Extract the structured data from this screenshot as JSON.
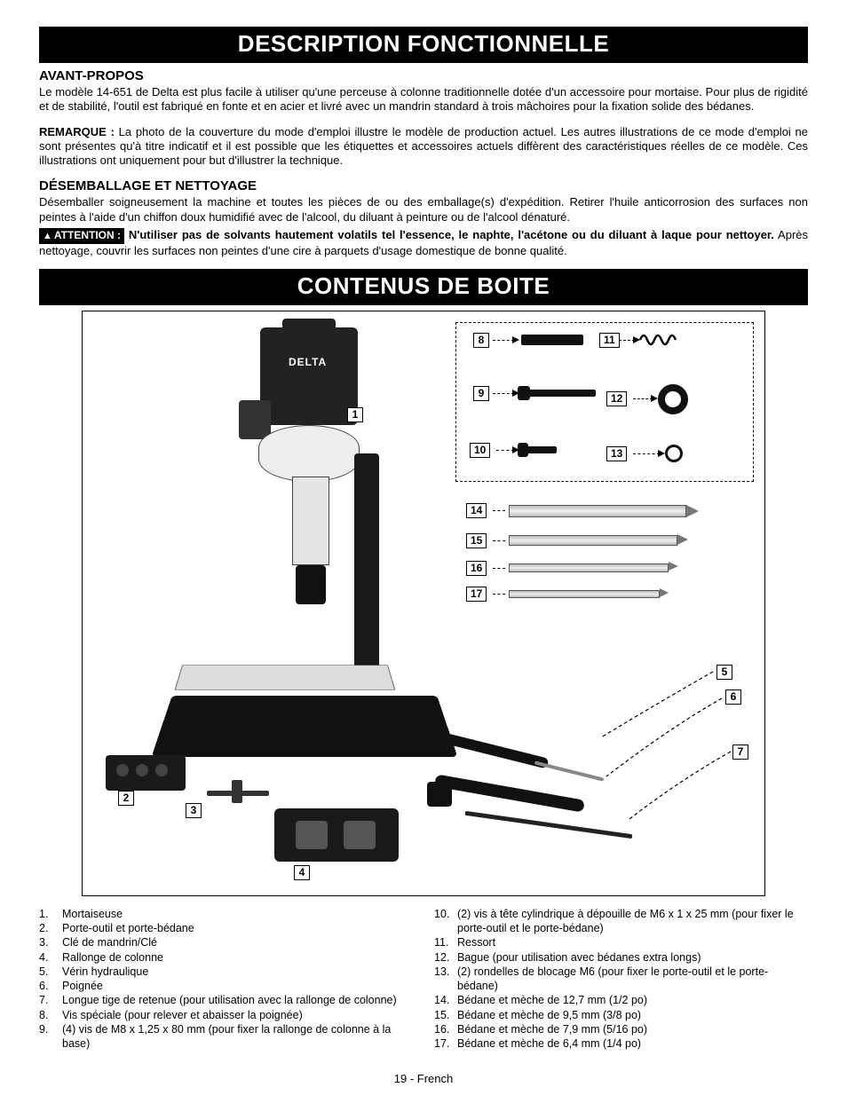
{
  "banner1": "DESCRIPTION FONCTIONNELLE",
  "banner2": "CONTENUS DE BOITE",
  "heading_avant": "AVANT-PROPOS",
  "para_avant": "Le modèle 14-651 de Delta est plus facile à utiliser qu'une perceuse à colonne traditionnelle dotée d'un accessoire pour mortaise. Pour plus de rigidité et de stabilité, l'outil est fabriqué en fonte et en acier et livré avec un mandrin standard à trois mâchoires pour la fixation solide des bédanes.",
  "remarque_label": "REMARQUE :",
  "remarque_text": " La photo de la couverture du mode d'emploi illustre le modèle de production actuel. Les autres illustrations de ce mode d'emploi ne sont présentes qu'à titre indicatif et il est possible que les étiquettes et accessoires actuels diffèrent des caractéristiques réelles de ce modèle. Ces illustrations ont uniquement pour but d'illustrer la technique.",
  "heading_desemb": "DÉSEMBALLAGE ET NETTOYAGE",
  "para_desemb": "Désemballer soigneusement la machine et toutes les pièces de ou des emballage(s) d'expédition. Retirer l'huile anticorrosion des surfaces non peintes à l'aide d'un chiffon doux humidifié avec de l'alcool, du diluant à peinture ou de l'alcool dénaturé.",
  "attention_badge": "ATTENTION :",
  "attention_bold": " N'utiliser pas de solvants hautement volatils tel l'essence, le naphte, l'acétone ou du diluant à laque pour nettoyer.",
  "attention_rest": " Après nettoyage, couvrir les surfaces non peintes d'une cire à parquets d'usage domestique de bonne qualité.",
  "brand": "DELTA",
  "callouts": {
    "c1": "1",
    "c2": "2",
    "c3": "3",
    "c4": "4",
    "c5": "5",
    "c6": "6",
    "c7": "7",
    "c8": "8",
    "c9": "9",
    "c10": "10",
    "c11": "11",
    "c12": "12",
    "c13": "13",
    "c14": "14",
    "c15": "15",
    "c16": "16",
    "c17": "17"
  },
  "left_list": [
    {
      "n": "1.",
      "t": "Mortaiseuse"
    },
    {
      "n": "2.",
      "t": "Porte-outil et porte-bédane"
    },
    {
      "n": "3.",
      "t": "Clé de mandrin/Clé"
    },
    {
      "n": "4.",
      "t": "Rallonge de colonne"
    },
    {
      "n": "5.",
      "t": "Vérin hydraulique"
    },
    {
      "n": "6.",
      "t": "Poignée"
    },
    {
      "n": "7.",
      "t": "Longue tige de retenue (pour utilisation avec la rallonge de colonne)"
    },
    {
      "n": "8.",
      "t": "Vis spéciale (pour relever et abaisser la poignée)"
    },
    {
      "n": "9.",
      "t": "(4) vis de M8 x 1,25 x 80 mm (pour fixer la rallonge de colonne à la base)"
    }
  ],
  "right_list": [
    {
      "n": "10.",
      "t": "(2) vis à tête cylindrique à dépouille de M6 x 1 x 25 mm (pour fixer le porte-outil et le porte-bédane)"
    },
    {
      "n": "11.",
      "t": "Ressort"
    },
    {
      "n": "12.",
      "t": "Bague (pour utilisation avec bédanes extra longs)"
    },
    {
      "n": "13.",
      "t": "(2) rondelles de blocage M6 (pour fixer le porte-outil et le porte-bédane)"
    },
    {
      "n": "14.",
      "t": "Bédane et mèche de 12,7 mm (1/2 po)"
    },
    {
      "n": "15.",
      "t": "Bédane et mèche de 9,5 mm (3/8 po)"
    },
    {
      "n": "16.",
      "t": "Bédane et mèche de 7,9 mm (5/16 po)"
    },
    {
      "n": "17.",
      "t": "Bédane et mèche de 6,4 mm (1/4 po)"
    }
  ],
  "footer": "19 - French"
}
